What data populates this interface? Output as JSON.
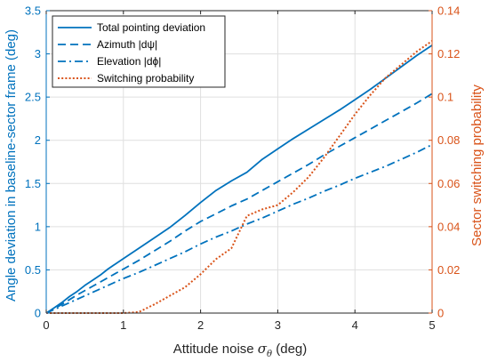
{
  "colors": {
    "left_axis": "#0072BD",
    "right_axis": "#D95319",
    "bottom_axis": "#262626",
    "grid": "#dfdfdf"
  },
  "chart_data": {
    "type": "line",
    "xlabel": "Attitude noise σ_θ (deg)",
    "ylabel_left": "Angle deviation in baseline-sector frame (deg)",
    "ylabel_right": "Sector switching probability",
    "xlim": [
      0,
      5
    ],
    "ylim_left": [
      0,
      3.5
    ],
    "ylim_right": [
      0,
      0.14
    ],
    "x_ticks": [
      "0",
      "1",
      "2",
      "3",
      "4",
      "5"
    ],
    "y_left_ticks": [
      "0",
      "0.5",
      "1",
      "1.5",
      "2",
      "2.5",
      "3",
      "3.5"
    ],
    "y_right_ticks": [
      "0",
      "0.02",
      "0.04",
      "0.06",
      "0.08",
      "0.1",
      "0.12",
      "0.14"
    ],
    "grid": true,
    "legend_position": "top-left",
    "series": [
      {
        "name": "Total pointing deviation",
        "axis": "left",
        "style": "solid",
        "color": "#0072BD",
        "x": [
          0,
          0.1,
          0.2,
          0.3,
          0.4,
          0.5,
          0.6,
          0.7,
          0.8,
          0.9,
          1.0,
          1.2,
          1.4,
          1.6,
          1.8,
          2.0,
          2.2,
          2.4,
          2.6,
          2.8,
          3.0,
          3.2,
          3.4,
          3.6,
          3.8,
          4.0,
          4.2,
          4.4,
          4.6,
          4.8,
          5.0
        ],
        "y": [
          0,
          0.06,
          0.12,
          0.19,
          0.25,
          0.32,
          0.38,
          0.44,
          0.51,
          0.57,
          0.63,
          0.75,
          0.87,
          0.99,
          1.13,
          1.28,
          1.42,
          1.53,
          1.63,
          1.78,
          1.9,
          2.02,
          2.13,
          2.24,
          2.35,
          2.47,
          2.59,
          2.72,
          2.85,
          2.98,
          3.1
        ]
      },
      {
        "name": "Azimuth |dψ|",
        "axis": "left",
        "style": "dashed",
        "color": "#0072BD",
        "x": [
          0,
          0.2,
          0.4,
          0.6,
          0.8,
          1.0,
          1.2,
          1.4,
          1.6,
          1.8,
          2.0,
          2.2,
          2.4,
          2.6,
          2.8,
          3.0,
          3.2,
          3.4,
          3.6,
          3.8,
          4.0,
          4.2,
          4.4,
          4.6,
          4.8,
          5.0
        ],
        "y": [
          0,
          0.1,
          0.21,
          0.31,
          0.41,
          0.51,
          0.61,
          0.72,
          0.83,
          0.95,
          1.06,
          1.15,
          1.24,
          1.32,
          1.42,
          1.52,
          1.62,
          1.72,
          1.83,
          1.93,
          2.03,
          2.13,
          2.23,
          2.33,
          2.43,
          2.54
        ]
      },
      {
        "name": "Elevation |dϕ|",
        "axis": "left",
        "style": "dashdot",
        "color": "#0072BD",
        "x": [
          0,
          0.2,
          0.4,
          0.6,
          0.8,
          1.0,
          1.2,
          1.4,
          1.6,
          1.8,
          2.0,
          2.2,
          2.4,
          2.6,
          2.8,
          3.0,
          3.2,
          3.4,
          3.6,
          3.8,
          4.0,
          4.2,
          4.4,
          4.6,
          4.8,
          5.0
        ],
        "y": [
          0,
          0.08,
          0.16,
          0.24,
          0.32,
          0.4,
          0.47,
          0.55,
          0.63,
          0.71,
          0.8,
          0.88,
          0.95,
          1.03,
          1.1,
          1.18,
          1.26,
          1.33,
          1.41,
          1.48,
          1.56,
          1.63,
          1.7,
          1.78,
          1.86,
          1.95
        ]
      },
      {
        "name": "Switching probability",
        "axis": "right",
        "style": "dotted",
        "color": "#D95319",
        "x": [
          0,
          0.5,
          1.0,
          1.2,
          1.4,
          1.6,
          1.8,
          2.0,
          2.2,
          2.4,
          2.6,
          2.8,
          3.0,
          3.2,
          3.4,
          3.6,
          3.8,
          4.0,
          4.2,
          4.4,
          4.6,
          4.8,
          5.0
        ],
        "y": [
          0,
          0,
          0,
          0.0005,
          0.004,
          0.008,
          0.012,
          0.018,
          0.025,
          0.03,
          0.045,
          0.048,
          0.05,
          0.056,
          0.063,
          0.072,
          0.082,
          0.092,
          0.101,
          0.109,
          0.115,
          0.121,
          0.126
        ]
      }
    ]
  }
}
